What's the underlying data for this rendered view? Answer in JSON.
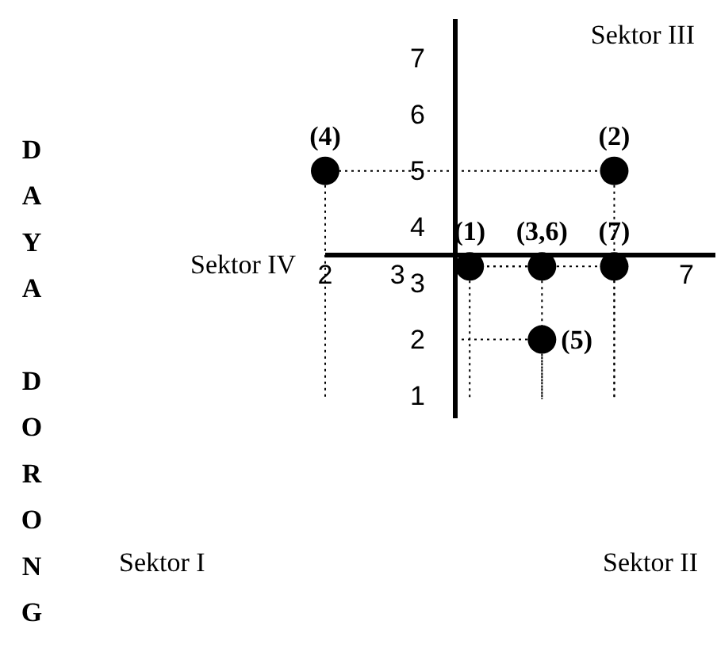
{
  "chart_data": {
    "type": "scatter",
    "ylabel": "DAYA DORONG",
    "x": [
      4,
      6,
      5,
      2,
      5,
      6
    ],
    "values": [
      3.3,
      5,
      3.3,
      5,
      2,
      3.3
    ],
    "color": "#000000",
    "marker": "circle",
    "xlim": [
      2,
      7.4
    ],
    "ylim": [
      0.6,
      7.7
    ],
    "xticks": [
      2,
      3,
      7
    ],
    "yticks": [
      1,
      2,
      3,
      4,
      5,
      6,
      7
    ],
    "annotations": [
      {
        "text": "(1)",
        "x": 4,
        "y": 3.3
      },
      {
        "text": "(2)",
        "x": 6,
        "y": 5
      },
      {
        "text": "(3,6)",
        "x": 5,
        "y": 3.3
      },
      {
        "text": "(4)",
        "x": 2,
        "y": 5
      },
      {
        "text": "(5)",
        "x": 5,
        "y": 2
      },
      {
        "text": "(7)",
        "x": 6,
        "y": 3.3
      },
      "Sektor III",
      "Sektor IV",
      "Sektor I",
      "Sektor II"
    ]
  }
}
